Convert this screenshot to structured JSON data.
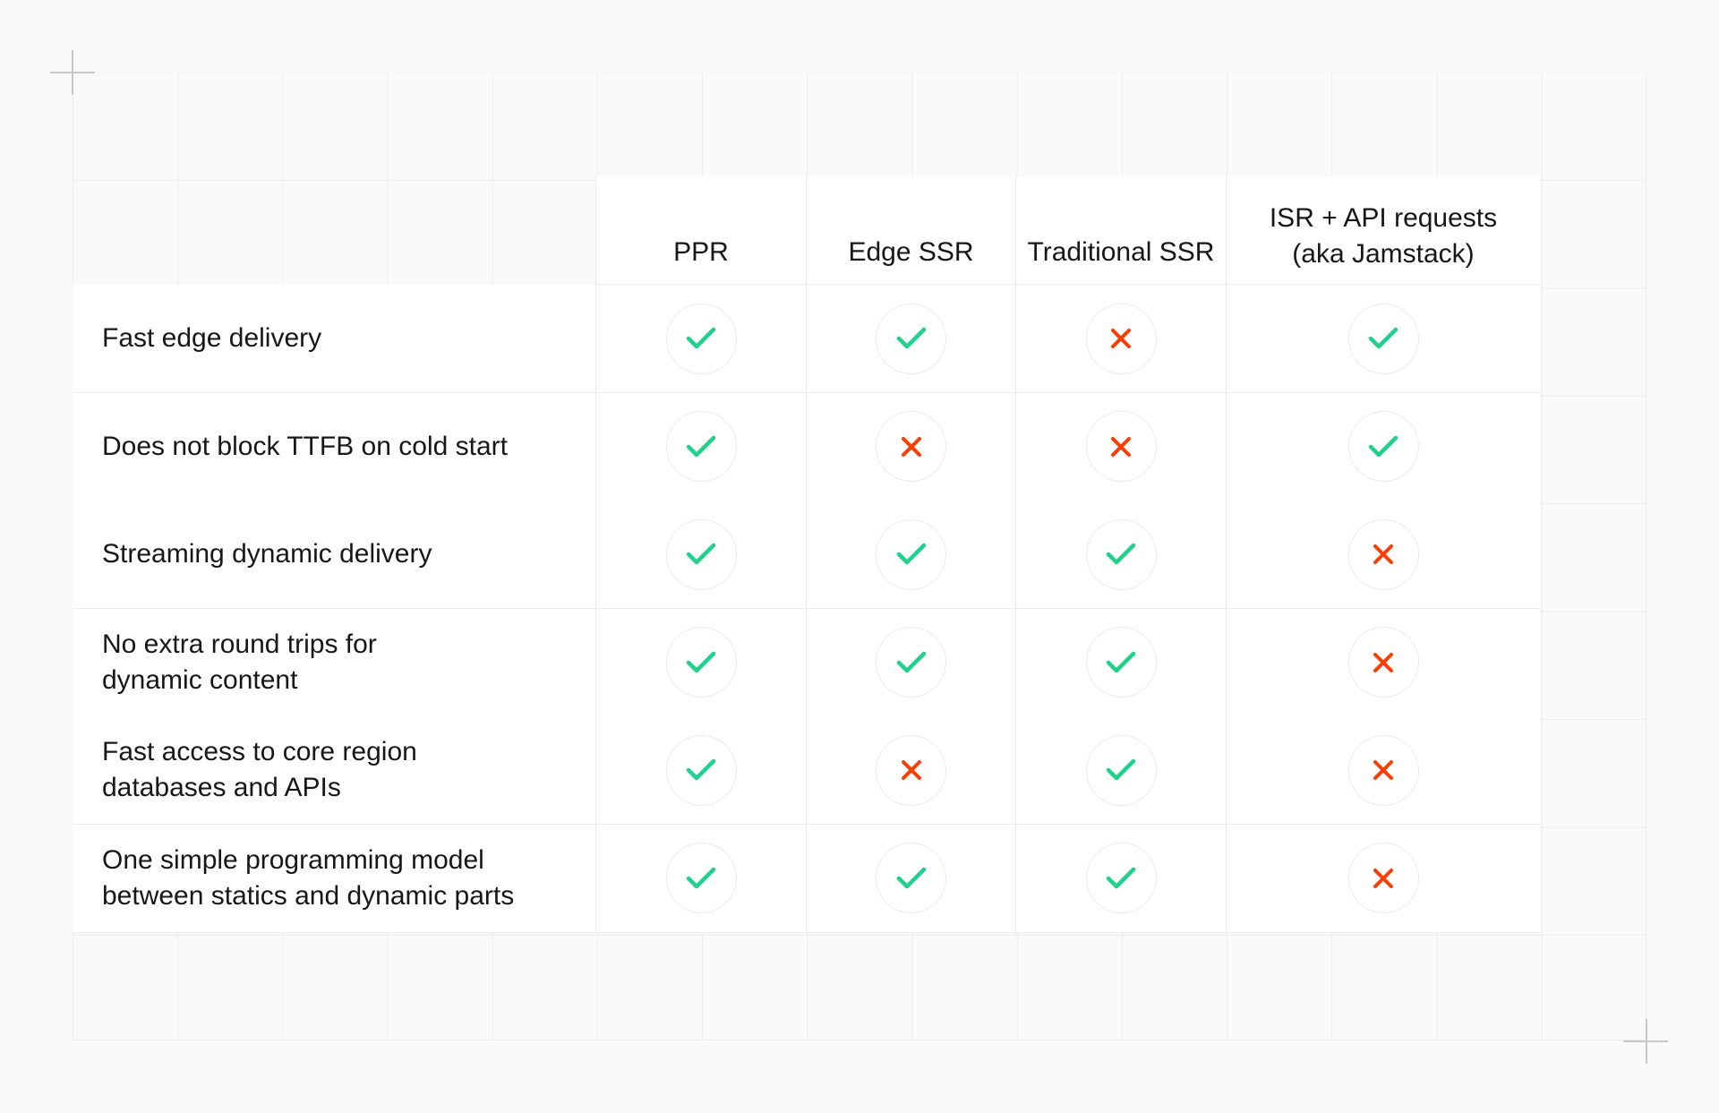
{
  "colors": {
    "check": "#1fd18a",
    "cross": "#ff3d00"
  },
  "columns": [
    "PPR",
    "Edge SSR",
    "Traditional SSR",
    "ISR + API requests (aka Jamstack)"
  ],
  "header_lines": {
    "isr_line1": "ISR + API requests",
    "isr_line2": "(aka Jamstack)"
  },
  "rows": [
    {
      "feature_line1": "Fast edge delivery",
      "feature_line2": "",
      "values": [
        true,
        true,
        false,
        true
      ]
    },
    {
      "feature_line1": "Does not block TTFB on cold start",
      "feature_line2": "",
      "values": [
        true,
        false,
        false,
        true
      ]
    },
    {
      "feature_line1": "Streaming dynamic delivery",
      "feature_line2": "",
      "values": [
        true,
        true,
        true,
        false
      ]
    },
    {
      "feature_line1": "No extra round trips for",
      "feature_line2": "dynamic content",
      "values": [
        true,
        true,
        true,
        false
      ]
    },
    {
      "feature_line1": "Fast access to core region",
      "feature_line2": "databases and APIs",
      "values": [
        true,
        false,
        true,
        false
      ]
    },
    {
      "feature_line1": "One simple programming model",
      "feature_line2": "between statics and dynamic parts",
      "values": [
        true,
        true,
        true,
        false
      ]
    }
  ]
}
